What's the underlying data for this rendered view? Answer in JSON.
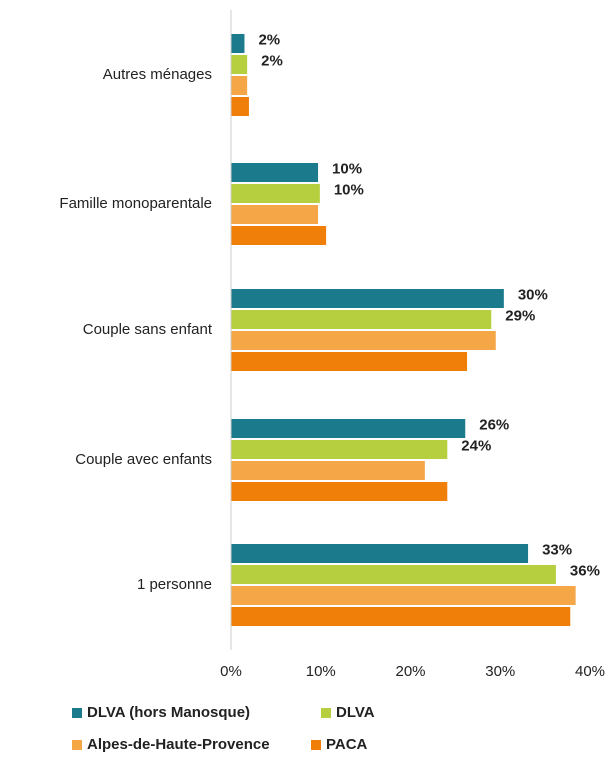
{
  "chart_data": {
    "type": "bar",
    "orientation": "horizontal",
    "categories": [
      "Autres ménages",
      "Famille monoparentale",
      "Couple sans enfant",
      "Couple avec enfants",
      "1 personne"
    ],
    "series": [
      {
        "name": "DLVA (hors Manosque)",
        "color": "#1b7a8c",
        "values": [
          1.5,
          9.7,
          30.4,
          26.1,
          33.1
        ],
        "value_labels": [
          "2%",
          "10%",
          "30%",
          "26%",
          "33%"
        ]
      },
      {
        "name": "DLVA",
        "color": "#b5cf3e",
        "values": [
          1.8,
          9.9,
          29.0,
          24.1,
          36.2
        ],
        "value_labels": [
          "2%",
          "10%",
          "29%",
          "24%",
          "36%"
        ]
      },
      {
        "name": "Alpes-de-Haute-Provence",
        "color": "#f5a646",
        "values": [
          1.8,
          9.7,
          29.5,
          21.6,
          38.4
        ]
      },
      {
        "name": "PACA",
        "color": "#f07f09",
        "values": [
          2.0,
          10.6,
          26.3,
          24.1,
          37.8
        ]
      }
    ],
    "xlim": [
      0,
      40
    ],
    "xticks": [
      {
        "value": 0,
        "label": "0%"
      },
      {
        "value": 10,
        "label": "10%"
      },
      {
        "value": 20,
        "label": "20%"
      },
      {
        "value": 30,
        "label": "30%"
      },
      {
        "value": 40,
        "label": "40%"
      }
    ]
  }
}
